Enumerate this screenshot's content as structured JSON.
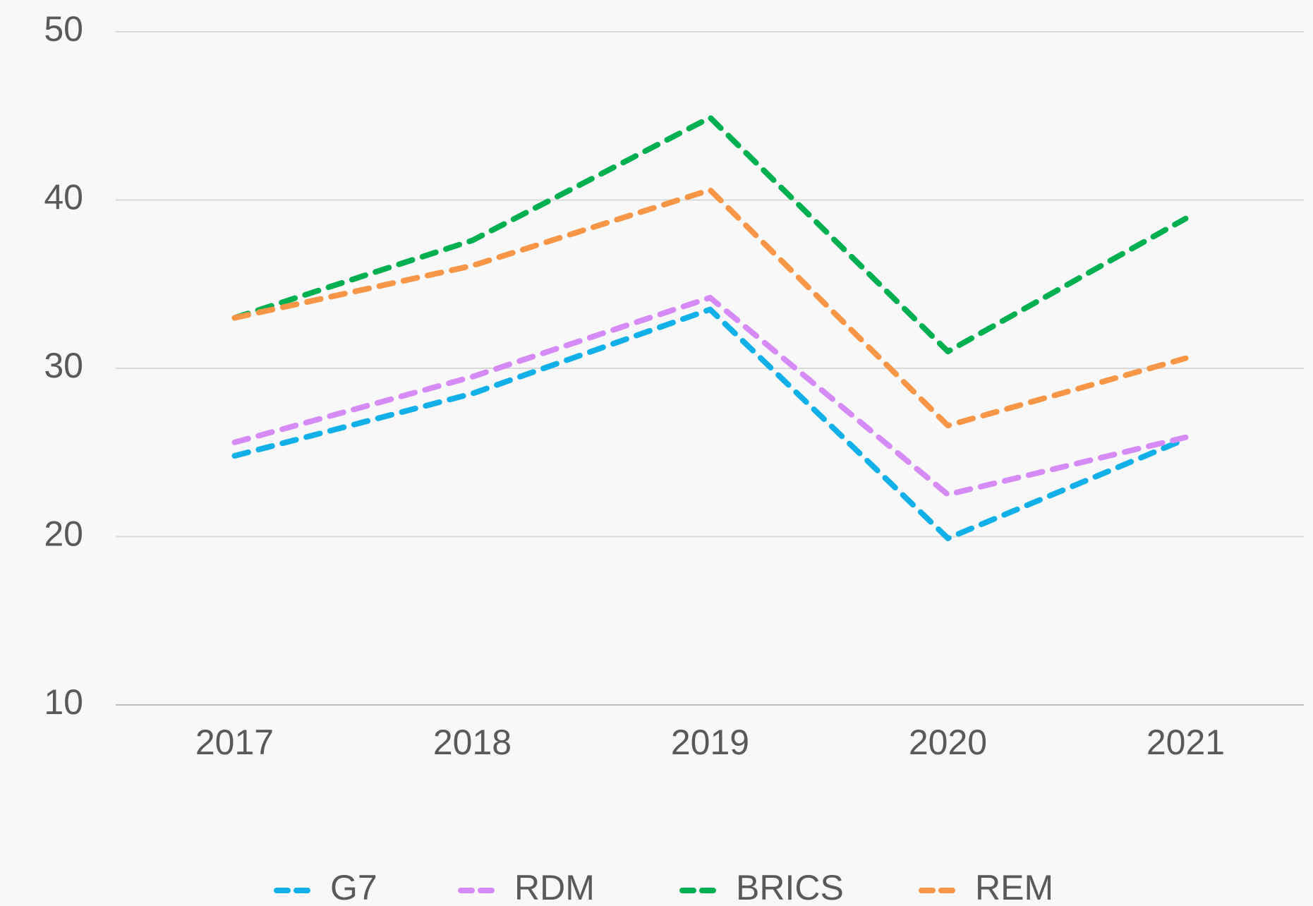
{
  "chart_data": {
    "type": "line",
    "categories": [
      "2017",
      "2018",
      "2019",
      "2020",
      "2021"
    ],
    "series": [
      {
        "name": "G7",
        "color": "#12b0e8",
        "values": [
          24.8,
          28.5,
          33.5,
          19.9,
          25.8
        ]
      },
      {
        "name": "RDM",
        "color": "#d68af5",
        "values": [
          25.6,
          29.5,
          34.2,
          22.5,
          25.9
        ]
      },
      {
        "name": "BRICS",
        "color": "#00b050",
        "values": [
          33.0,
          37.6,
          44.9,
          31.0,
          38.9
        ]
      },
      {
        "name": "REM",
        "color": "#f79646",
        "values": [
          33.0,
          36.1,
          40.6,
          26.6,
          30.6
        ]
      }
    ],
    "ylim": [
      10,
      50
    ],
    "yticks": [
      10,
      20,
      30,
      40,
      50
    ],
    "grid": true,
    "legend": "bottom"
  }
}
